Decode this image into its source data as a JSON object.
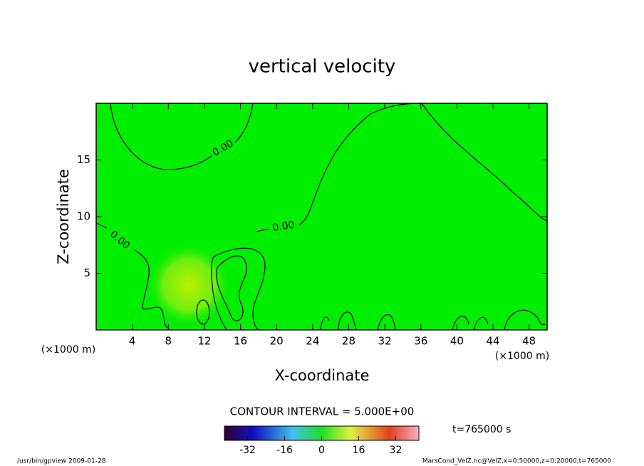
{
  "chart_data": {
    "type": "contour",
    "title": "vertical velocity",
    "x_label": "X-coordinate",
    "y_label": "Z-coordinate",
    "x_unit": "(×1000 m)",
    "y_unit": "(×1000 m)",
    "xlim": [
      0,
      50
    ],
    "xticks": [
      4,
      8,
      12,
      16,
      20,
      24,
      28,
      32,
      36,
      40,
      44,
      48
    ],
    "ylim": [
      0,
      20
    ],
    "yticks": [
      5,
      10,
      15
    ],
    "contour_labels": [
      {
        "value": 0,
        "label": "0.00"
      },
      {
        "value": 0,
        "label": "0.00"
      },
      {
        "value": 0,
        "label": "0.00"
      }
    ],
    "contour_interval_text": "CONTOUR INTERVAL = 5.000E+00",
    "time_text": "t=765000 s",
    "colorbar": {
      "lim": [
        -42,
        42
      ],
      "ticks": [
        -32,
        -16,
        0,
        16,
        32
      ]
    },
    "footer_left": "/usr/bin/gpview  2009-01-28",
    "footer_right": "MarsCond_VelZ.nc@VelZ,x=0:50000,z=0:20000,t=765000"
  }
}
